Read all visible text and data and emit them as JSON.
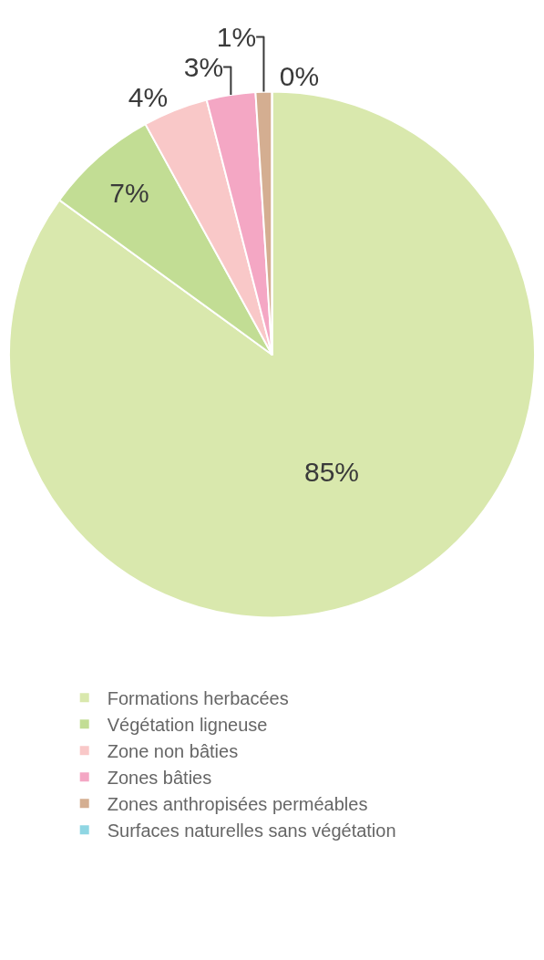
{
  "chart_data": {
    "type": "pie",
    "categories": [
      "Formations herbacées",
      "Végétation ligneuse",
      "Zone non bâties",
      "Zones bâties",
      "Zones anthropisées perméables",
      "Surfaces naturelles sans végétation"
    ],
    "values": [
      85,
      7,
      4,
      3,
      1,
      0
    ],
    "colors": [
      "#d9e8ad",
      "#c2dd94",
      "#f9c8c8",
      "#f4a7c4",
      "#d4ae91",
      "#8fd6e3"
    ],
    "value_labels": [
      "85%",
      "7%",
      "4%",
      "3%",
      "1%",
      "0%"
    ],
    "legend": "bottom"
  }
}
